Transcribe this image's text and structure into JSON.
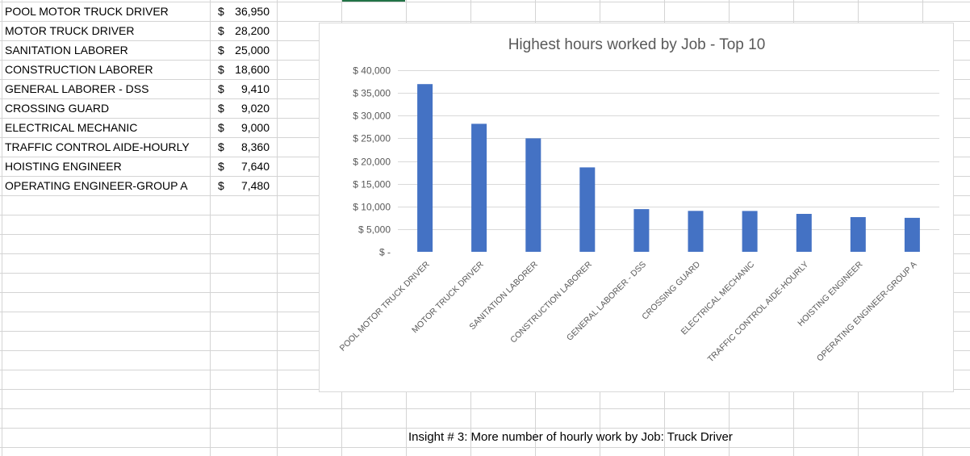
{
  "sheet": {
    "rows": [
      {
        "job": "POOL MOTOR TRUCK DRIVER",
        "currency": "$",
        "amount": "36,950"
      },
      {
        "job": "MOTOR TRUCK DRIVER",
        "currency": "$",
        "amount": "28,200"
      },
      {
        "job": "SANITATION LABORER",
        "currency": "$",
        "amount": "25,000"
      },
      {
        "job": "CONSTRUCTION LABORER",
        "currency": "$",
        "amount": "18,600"
      },
      {
        "job": "GENERAL LABORER - DSS",
        "currency": "$",
        "amount": "9,410"
      },
      {
        "job": "CROSSING GUARD",
        "currency": "$",
        "amount": "9,020"
      },
      {
        "job": "ELECTRICAL MECHANIC",
        "currency": "$",
        "amount": "9,000"
      },
      {
        "job": "TRAFFIC CONTROL AIDE-HOURLY",
        "currency": "$",
        "amount": "8,360"
      },
      {
        "job": "HOISTING ENGINEER",
        "currency": "$",
        "amount": "7,640"
      },
      {
        "job": "OPERATING ENGINEER-GROUP A",
        "currency": "$",
        "amount": "7,480"
      }
    ],
    "insight": "Insight # 3: More number of hourly work by Job: Truck Driver"
  },
  "chart_data": {
    "type": "bar",
    "title": "Highest hours worked by Job - Top 10",
    "categories": [
      "POOL MOTOR TRUCK DRIVER",
      "MOTOR TRUCK DRIVER",
      "SANITATION LABORER",
      "CONSTRUCTION LABORER",
      "GENERAL LABORER - DSS",
      "CROSSING GUARD",
      "ELECTRICAL MECHANIC",
      "TRAFFIC CONTROL AIDE-HOURLY",
      "HOISTING ENGINEER",
      "OPERATING ENGINEER-GROUP A"
    ],
    "values": [
      36950,
      28200,
      25000,
      18600,
      9410,
      9020,
      9000,
      8360,
      7640,
      7480
    ],
    "ylim": [
      0,
      40000
    ],
    "yticks": [
      0,
      5000,
      10000,
      15000,
      20000,
      25000,
      30000,
      35000,
      40000
    ],
    "ytick_labels": [
      "$ -",
      "$ 5,000",
      "$ 10,000",
      "$ 15,000",
      "$ 20,000",
      "$ 25,000",
      "$ 30,000",
      "$ 35,000",
      "$ 40,000"
    ],
    "grid": true,
    "legend": "none",
    "bar_color": "#4472c4",
    "grid_color": "#d9d9d9"
  }
}
